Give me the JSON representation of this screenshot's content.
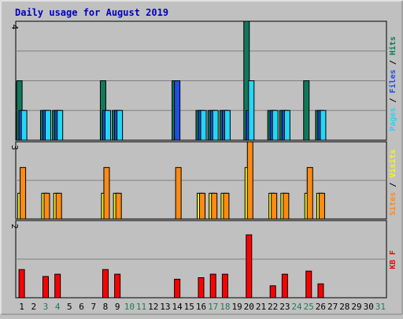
{
  "chart_data": {
    "type": "bar",
    "title": "Daily usage for August 2019",
    "days": [
      "1",
      "2",
      "3",
      "4",
      "5",
      "6",
      "7",
      "8",
      "9",
      "10",
      "11",
      "12",
      "13",
      "14",
      "15",
      "16",
      "17",
      "18",
      "19",
      "20",
      "21",
      "22",
      "23",
      "24",
      "25",
      "26",
      "27",
      "28",
      "29",
      "30",
      "31"
    ],
    "weekend_days": [
      3,
      4,
      10,
      11,
      17,
      18,
      24,
      25,
      31
    ],
    "colors": {
      "background": "#c0c0c0",
      "plot": "#c0c0c0",
      "title": "#0000c0",
      "weekday_label": "#000000",
      "weekend_label": "#207a55",
      "hits": "#0f7a5a",
      "files": "#1d4fe0",
      "pages": "#23d7f5",
      "visits": "#f5f51e",
      "sites": "#ff8a14",
      "kbf": "#ff0000",
      "grid": "#808080"
    },
    "panels": [
      {
        "id": "hits-files-pages",
        "ymax": 4,
        "tick_label": "4",
        "legend": [
          {
            "text": "Pages",
            "color": "#23d7f5"
          },
          {
            "text": " / ",
            "color": "#000000"
          },
          {
            "text": "Files",
            "color": "#1d4fe0"
          },
          {
            "text": " / ",
            "color": "#000000"
          },
          {
            "text": "Hits",
            "color": "#0f7a5a"
          }
        ],
        "series": [
          {
            "name": "Hits",
            "color": "#0f7a5a",
            "values": [
              2,
              0,
              1,
              1,
              0,
              0,
              0,
              2,
              1,
              0,
              0,
              0,
              0,
              2,
              0,
              1,
              1,
              1,
              0,
              4,
              0,
              1,
              1,
              0,
              2,
              1,
              0,
              0,
              0,
              0,
              0
            ]
          },
          {
            "name": "Files",
            "color": "#1d4fe0",
            "values": [
              1,
              0,
              1,
              1,
              0,
              0,
              0,
              1,
              1,
              0,
              0,
              0,
              0,
              2,
              0,
              1,
              1,
              1,
              0,
              1,
              0,
              1,
              1,
              0,
              0,
              1,
              0,
              0,
              0,
              0,
              0
            ]
          },
          {
            "name": "Pages",
            "color": "#23d7f5",
            "values": [
              1,
              0,
              1,
              1,
              0,
              0,
              0,
              1,
              1,
              0,
              0,
              0,
              0,
              0,
              0,
              1,
              1,
              1,
              0,
              2,
              0,
              1,
              1,
              0,
              0,
              1,
              0,
              0,
              0,
              0,
              0
            ]
          }
        ]
      },
      {
        "id": "visits-sites",
        "ymax": 3,
        "tick_label": "3",
        "legend": [
          {
            "text": "Sites",
            "color": "#ff8a14"
          },
          {
            "text": " / ",
            "color": "#000000"
          },
          {
            "text": "Visits",
            "color": "#f5f51e"
          }
        ],
        "series": [
          {
            "name": "Visits",
            "color": "#f5f51e",
            "values": [
              1,
              0,
              1,
              1,
              0,
              0,
              0,
              1,
              1,
              0,
              0,
              0,
              0,
              0,
              0,
              1,
              1,
              1,
              0,
              2,
              0,
              1,
              1,
              0,
              1,
              1,
              0,
              0,
              0,
              0,
              0
            ]
          },
          {
            "name": "Sites",
            "color": "#ff8a14",
            "values": [
              2,
              0,
              1,
              1,
              0,
              0,
              0,
              2,
              1,
              0,
              0,
              0,
              0,
              2,
              0,
              1,
              1,
              1,
              0,
              3,
              0,
              1,
              1,
              0,
              2,
              1,
              0,
              0,
              0,
              0,
              0
            ]
          }
        ]
      },
      {
        "id": "kbf",
        "ymax": 2,
        "tick_label": "2",
        "legend": [
          {
            "text": "KB F",
            "color": "#ff0000"
          }
        ],
        "series": [
          {
            "name": "KB F",
            "color": "#ff0000",
            "values": [
              0.73,
              0,
              0.55,
              0.61,
              0,
              0,
              0,
              0.73,
              0.61,
              0,
              0,
              0,
              0,
              0.48,
              0,
              0.52,
              0.61,
              0.61,
              0,
              1.63,
              0,
              0.31,
              0.61,
              0,
              0.69,
              0.36,
              0,
              0,
              0,
              0,
              0
            ]
          }
        ]
      }
    ]
  }
}
